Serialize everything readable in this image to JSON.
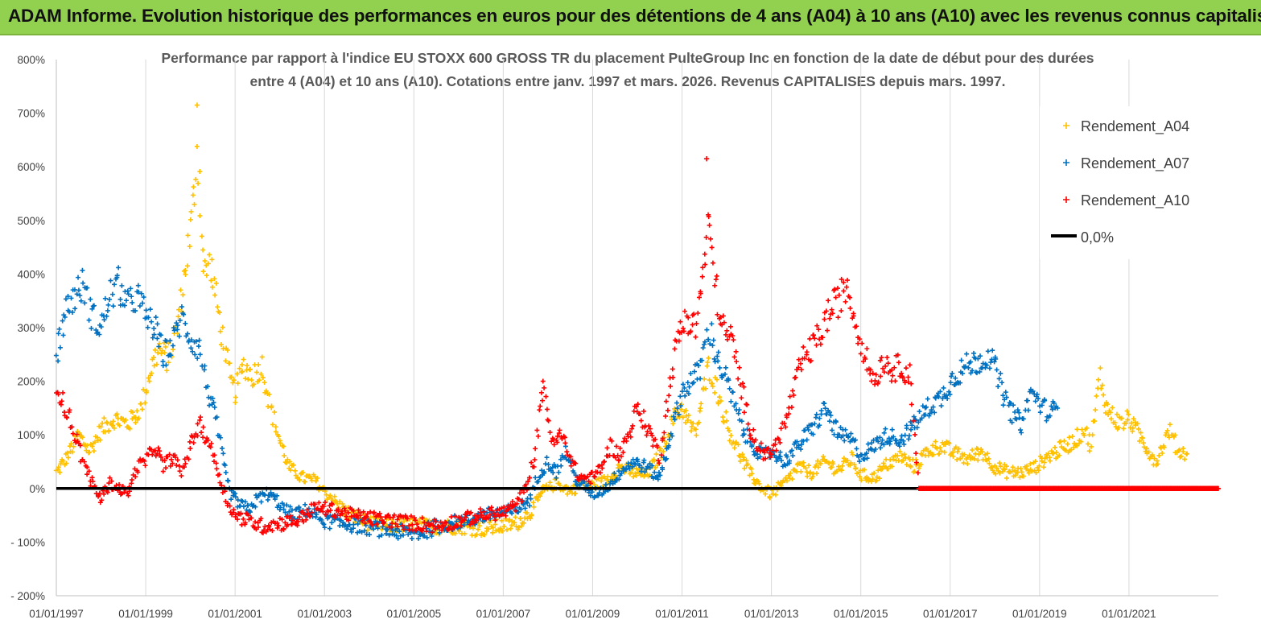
{
  "header": {
    "title": "ADAM Informe. Evolution historique des performances en euros pour des détentions de 4 ans (A04) à 10 ans (A10) avec les revenus connus capitalisés"
  },
  "chart_data": {
    "type": "scatter",
    "title_line1": "Performance par rapport à l'indice EU STOXX 600 GROSS TR  du placement PulteGroup Inc en fonction de la date de début pour des durées",
    "title_line2": "entre 4 (A04) et 10 ans (A10). Cotations entre janv. 1997 et mars. 2026. Revenus CAPITALISES depuis mars. 1997.",
    "xlabel": "",
    "ylabel": "",
    "x_range": [
      1997.0,
      2023.0
    ],
    "ylim": [
      -200,
      800
    ],
    "y_ticks": [
      {
        "value": 800,
        "label": "800%"
      },
      {
        "value": 700,
        "label": "700%"
      },
      {
        "value": 600,
        "label": "600%"
      },
      {
        "value": 500,
        "label": "500%"
      },
      {
        "value": 400,
        "label": "400%"
      },
      {
        "value": 300,
        "label": "300%"
      },
      {
        "value": 200,
        "label": "200%"
      },
      {
        "value": 100,
        "label": "100%"
      },
      {
        "value": 0,
        "label": "0%"
      },
      {
        "value": -100,
        "label": "- 100%"
      },
      {
        "value": -200,
        "label": "- 200%"
      }
    ],
    "x_ticks": [
      {
        "value": 1997.0,
        "label": "01/01/1997"
      },
      {
        "value": 1999.0,
        "label": "01/01/1999"
      },
      {
        "value": 2001.0,
        "label": "01/01/2001"
      },
      {
        "value": 2003.0,
        "label": "01/01/2003"
      },
      {
        "value": 2005.0,
        "label": "01/01/2005"
      },
      {
        "value": 2007.0,
        "label": "01/01/2007"
      },
      {
        "value": 2009.0,
        "label": "01/01/2009"
      },
      {
        "value": 2011.0,
        "label": "01/01/2011"
      },
      {
        "value": 2013.0,
        "label": "01/01/2013"
      },
      {
        "value": 2015.0,
        "label": "01/01/2015"
      },
      {
        "value": 2017.0,
        "label": "01/01/2017"
      },
      {
        "value": 2019.0,
        "label": "01/01/2019"
      },
      {
        "value": 2021.0,
        "label": "01/01/2021"
      }
    ],
    "grid": {
      "vertical": true,
      "horizontal": false
    },
    "legend_position": "top-right",
    "series": [
      {
        "name": "Rendement_A04",
        "color": "#ffc000",
        "marker": "+",
        "points": [
          [
            1997.0,
            30
          ],
          [
            1997.25,
            60
          ],
          [
            1997.5,
            100
          ],
          [
            1997.75,
            70
          ],
          [
            1998.0,
            110
          ],
          [
            1998.3,
            130
          ],
          [
            1998.6,
            120
          ],
          [
            1998.9,
            150
          ],
          [
            1999.1,
            220
          ],
          [
            1999.3,
            260
          ],
          [
            1999.5,
            240
          ],
          [
            1999.7,
            300
          ],
          [
            1999.9,
            420
          ],
          [
            2000.0,
            480
          ],
          [
            2000.1,
            560
          ],
          [
            2000.15,
            640
          ],
          [
            2000.2,
            580
          ],
          [
            2000.3,
            400
          ],
          [
            2000.45,
            420
          ],
          [
            2000.6,
            340
          ],
          [
            2000.75,
            270
          ],
          [
            2000.9,
            200
          ],
          [
            2001.0,
            180
          ],
          [
            2001.2,
            230
          ],
          [
            2001.4,
            210
          ],
          [
            2001.6,
            230
          ],
          [
            2001.8,
            150
          ],
          [
            2002.0,
            90
          ],
          [
            2002.2,
            40
          ],
          [
            2002.5,
            20
          ],
          [
            2002.8,
            15
          ],
          [
            2003.0,
            -5
          ],
          [
            2003.3,
            -30
          ],
          [
            2003.6,
            -50
          ],
          [
            2004.0,
            -65
          ],
          [
            2004.5,
            -70
          ],
          [
            2005.0,
            -68
          ],
          [
            2005.5,
            -72
          ],
          [
            2006.0,
            -70
          ],
          [
            2006.5,
            -75
          ],
          [
            2007.0,
            -70
          ],
          [
            2007.3,
            -65
          ],
          [
            2007.6,
            -45
          ],
          [
            2007.9,
            -5
          ],
          [
            2008.2,
            10
          ],
          [
            2008.5,
            -5
          ],
          [
            2008.8,
            10
          ],
          [
            2009.0,
            5
          ],
          [
            2009.3,
            15
          ],
          [
            2009.6,
            40
          ],
          [
            2009.9,
            30
          ],
          [
            2010.2,
            25
          ],
          [
            2010.5,
            60
          ],
          [
            2010.8,
            130
          ],
          [
            2011.0,
            150
          ],
          [
            2011.3,
            100
          ],
          [
            2011.6,
            230
          ],
          [
            2011.8,
            180
          ],
          [
            2012.0,
            120
          ],
          [
            2012.2,
            80
          ],
          [
            2012.5,
            30
          ],
          [
            2012.8,
            0
          ],
          [
            2013.0,
            -10
          ],
          [
            2013.3,
            10
          ],
          [
            2013.6,
            40
          ],
          [
            2013.9,
            30
          ],
          [
            2014.2,
            50
          ],
          [
            2014.5,
            35
          ],
          [
            2014.8,
            55
          ],
          [
            2015.0,
            25
          ],
          [
            2015.3,
            20
          ],
          [
            2015.6,
            45
          ],
          [
            2015.9,
            60
          ],
          [
            2016.2,
            40
          ],
          [
            2016.5,
            70
          ],
          [
            2016.8,
            80
          ],
          [
            2017.1,
            65
          ],
          [
            2017.4,
            55
          ],
          [
            2017.7,
            70
          ],
          [
            2018.0,
            40
          ],
          [
            2018.3,
            30
          ],
          [
            2018.6,
            30
          ],
          [
            2018.9,
            40
          ],
          [
            2019.2,
            60
          ],
          [
            2019.5,
            75
          ],
          [
            2019.8,
            90
          ],
          [
            2020.0,
            110
          ],
          [
            2020.15,
            80
          ],
          [
            2020.35,
            210
          ],
          [
            2020.5,
            150
          ],
          [
            2020.8,
            120
          ],
          [
            2021.0,
            130
          ],
          [
            2021.3,
            90
          ],
          [
            2021.6,
            50
          ],
          [
            2021.9,
            110
          ],
          [
            2022.1,
            70
          ],
          [
            2022.3,
            65
          ]
        ]
      },
      {
        "name": "Rendement_A07",
        "color": "#0070c0",
        "marker": "+",
        "points": [
          [
            1997.0,
            250
          ],
          [
            1997.2,
            330
          ],
          [
            1997.4,
            360
          ],
          [
            1997.6,
            380
          ],
          [
            1997.8,
            320
          ],
          [
            1998.0,
            300
          ],
          [
            1998.2,
            360
          ],
          [
            1998.4,
            380
          ],
          [
            1998.6,
            340
          ],
          [
            1998.8,
            360
          ],
          [
            1999.0,
            320
          ],
          [
            1999.2,
            300
          ],
          [
            1999.4,
            250
          ],
          [
            1999.6,
            270
          ],
          [
            1999.8,
            320
          ],
          [
            2000.0,
            280
          ],
          [
            2000.2,
            260
          ],
          [
            2000.4,
            180
          ],
          [
            2000.6,
            120
          ],
          [
            2000.75,
            40
          ],
          [
            2000.9,
            -10
          ],
          [
            2001.1,
            -30
          ],
          [
            2001.3,
            -40
          ],
          [
            2001.5,
            -20
          ],
          [
            2001.7,
            -10
          ],
          [
            2001.9,
            -20
          ],
          [
            2002.1,
            -40
          ],
          [
            2002.3,
            -50
          ],
          [
            2002.6,
            -40
          ],
          [
            2003.0,
            -60
          ],
          [
            2003.4,
            -65
          ],
          [
            2003.8,
            -70
          ],
          [
            2004.2,
            -75
          ],
          [
            2004.6,
            -80
          ],
          [
            2005.0,
            -85
          ],
          [
            2005.4,
            -75
          ],
          [
            2005.8,
            -65
          ],
          [
            2006.2,
            -60
          ],
          [
            2006.6,
            -50
          ],
          [
            2007.0,
            -45
          ],
          [
            2007.3,
            -40
          ],
          [
            2007.6,
            -20
          ],
          [
            2007.8,
            30
          ],
          [
            2008.0,
            50
          ],
          [
            2008.2,
            30
          ],
          [
            2008.4,
            70
          ],
          [
            2008.6,
            20
          ],
          [
            2009.0,
            -10
          ],
          [
            2009.3,
            0
          ],
          [
            2009.6,
            30
          ],
          [
            2009.9,
            50
          ],
          [
            2010.2,
            40
          ],
          [
            2010.5,
            20
          ],
          [
            2010.8,
            120
          ],
          [
            2011.0,
            180
          ],
          [
            2011.2,
            200
          ],
          [
            2011.4,
            220
          ],
          [
            2011.6,
            300
          ],
          [
            2011.8,
            240
          ],
          [
            2012.0,
            200
          ],
          [
            2012.2,
            150
          ],
          [
            2012.4,
            100
          ],
          [
            2012.6,
            80
          ],
          [
            2012.8,
            60
          ],
          [
            2013.0,
            70
          ],
          [
            2013.3,
            50
          ],
          [
            2013.6,
            80
          ],
          [
            2013.9,
            110
          ],
          [
            2014.2,
            150
          ],
          [
            2014.5,
            100
          ],
          [
            2014.8,
            90
          ],
          [
            2015.0,
            60
          ],
          [
            2015.3,
            80
          ],
          [
            2015.6,
            100
          ],
          [
            2015.9,
            90
          ],
          [
            2016.2,
            120
          ],
          [
            2016.5,
            150
          ],
          [
            2016.8,
            170
          ],
          [
            2017.1,
            210
          ],
          [
            2017.4,
            230
          ],
          [
            2017.7,
            240
          ],
          [
            2017.9,
            250
          ],
          [
            2018.1,
            200
          ],
          [
            2018.3,
            150
          ],
          [
            2018.6,
            120
          ],
          [
            2018.8,
            180
          ],
          [
            2019.0,
            160
          ],
          [
            2019.2,
            140
          ],
          [
            2019.4,
            150
          ]
        ]
      },
      {
        "name": "Rendement_A10",
        "color": "#ff0000",
        "marker": "+",
        "points": [
          [
            1997.0,
            200
          ],
          [
            1997.15,
            160
          ],
          [
            1997.3,
            130
          ],
          [
            1997.45,
            90
          ],
          [
            1997.6,
            50
          ],
          [
            1997.8,
            10
          ],
          [
            1998.0,
            -20
          ],
          [
            1998.2,
            10
          ],
          [
            1998.4,
            0
          ],
          [
            1998.6,
            -10
          ],
          [
            1998.8,
            40
          ],
          [
            1999.0,
            50
          ],
          [
            1999.2,
            80
          ],
          [
            1999.4,
            40
          ],
          [
            1999.6,
            60
          ],
          [
            1999.8,
            30
          ],
          [
            2000.0,
            80
          ],
          [
            2000.2,
            120
          ],
          [
            2000.4,
            90
          ],
          [
            2000.6,
            40
          ],
          [
            2000.8,
            -20
          ],
          [
            2001.0,
            -50
          ],
          [
            2001.3,
            -60
          ],
          [
            2001.6,
            -70
          ],
          [
            2002.0,
            -65
          ],
          [
            2002.4,
            -60
          ],
          [
            2002.8,
            -35
          ],
          [
            2003.2,
            -40
          ],
          [
            2003.6,
            -50
          ],
          [
            2004.0,
            -55
          ],
          [
            2004.5,
            -60
          ],
          [
            2005.0,
            -65
          ],
          [
            2005.5,
            -70
          ],
          [
            2006.0,
            -60
          ],
          [
            2006.5,
            -50
          ],
          [
            2007.0,
            -45
          ],
          [
            2007.3,
            -30
          ],
          [
            2007.5,
            0
          ],
          [
            2007.7,
            60
          ],
          [
            2007.9,
            200
          ],
          [
            2008.1,
            80
          ],
          [
            2008.3,
            100
          ],
          [
            2008.5,
            60
          ],
          [
            2008.7,
            20
          ],
          [
            2009.0,
            20
          ],
          [
            2009.2,
            40
          ],
          [
            2009.4,
            80
          ],
          [
            2009.6,
            60
          ],
          [
            2009.8,
            100
          ],
          [
            2010.0,
            150
          ],
          [
            2010.3,
            100
          ],
          [
            2010.5,
            60
          ],
          [
            2010.7,
            180
          ],
          [
            2010.9,
            280
          ],
          [
            2011.1,
            320
          ],
          [
            2011.3,
            300
          ],
          [
            2011.5,
            420
          ],
          [
            2011.6,
            500
          ],
          [
            2011.75,
            380
          ],
          [
            2011.9,
            300
          ],
          [
            2012.1,
            280
          ],
          [
            2012.3,
            200
          ],
          [
            2012.5,
            120
          ],
          [
            2012.7,
            80
          ],
          [
            2012.9,
            60
          ],
          [
            2013.1,
            80
          ],
          [
            2013.3,
            120
          ],
          [
            2013.5,
            180
          ],
          [
            2013.7,
            240
          ],
          [
            2013.9,
            260
          ],
          [
            2014.1,
            290
          ],
          [
            2014.3,
            330
          ],
          [
            2014.5,
            350
          ],
          [
            2014.7,
            380
          ],
          [
            2014.9,
            300
          ],
          [
            2015.1,
            250
          ],
          [
            2015.3,
            200
          ],
          [
            2015.5,
            240
          ],
          [
            2015.7,
            220
          ],
          [
            2015.9,
            230
          ],
          [
            2016.1,
            210
          ],
          [
            2016.3,
            0
          ],
          [
            2017.0,
            0
          ],
          [
            2018.0,
            0
          ],
          [
            2019.0,
            0
          ],
          [
            2020.0,
            0
          ],
          [
            2021.0,
            0
          ],
          [
            2022.0,
            0
          ],
          [
            2023.0,
            0
          ]
        ]
      }
    ],
    "reference_line": {
      "name": "0,0%",
      "value": 0,
      "color": "#000000"
    },
    "annotations": [
      {
        "series": "Rendement_A04",
        "x": 2000.15,
        "y": 715
      },
      {
        "series": "Rendement_A10",
        "x": 2011.55,
        "y": 615
      }
    ]
  }
}
